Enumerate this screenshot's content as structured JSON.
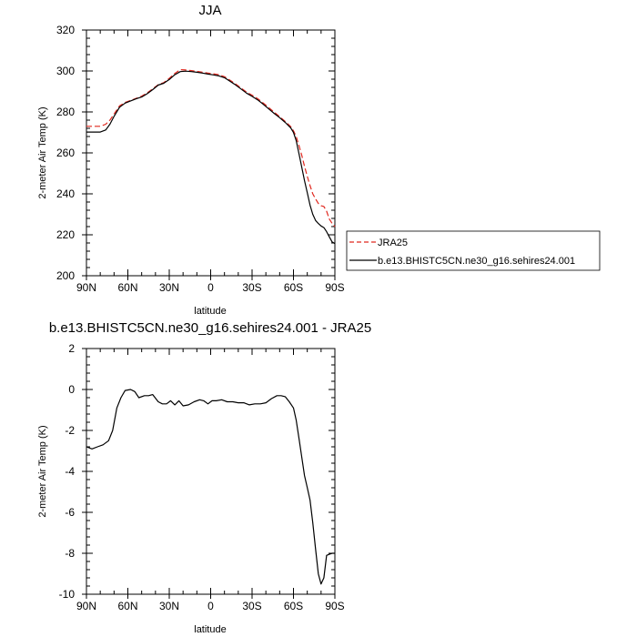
{
  "chart_data": [
    {
      "type": "line",
      "title": "JJA",
      "xlabel": "latitude",
      "ylabel": "2-meter Air Temp (K)",
      "xlim": [
        90,
        -90
      ],
      "ylim": [
        200,
        320
      ],
      "xticks": [
        {
          "value": 90,
          "label": "90N"
        },
        {
          "value": 60,
          "label": "60N"
        },
        {
          "value": 30,
          "label": "30N"
        },
        {
          "value": 0,
          "label": "0"
        },
        {
          "value": -30,
          "label": "30S"
        },
        {
          "value": -60,
          "label": "60S"
        },
        {
          "value": -90,
          "label": "90S"
        }
      ],
      "yticks": [
        200,
        220,
        240,
        260,
        280,
        300,
        320
      ],
      "legend_position": "right",
      "series": [
        {
          "name": "JRA25",
          "color": "#e0281f",
          "dash": "dashed",
          "x": [
            90,
            85,
            80,
            76,
            73,
            70,
            66,
            62,
            58,
            54,
            50,
            46,
            42,
            38,
            34,
            30,
            26,
            22,
            18,
            14,
            10,
            6,
            2,
            -2,
            -6,
            -10,
            -14,
            -18,
            -22,
            -26,
            -30,
            -34,
            -38,
            -42,
            -46,
            -50,
            -54,
            -58,
            -60,
            -62,
            -64,
            -66,
            -68,
            -70,
            -72,
            -74,
            -76,
            -78,
            -80,
            -82,
            -84,
            -86,
            -88,
            -90
          ],
          "y": [
            273,
            273,
            273,
            274,
            276,
            279,
            283,
            284.6,
            285.6,
            286.6,
            287.7,
            289.3,
            291.3,
            293.3,
            294.3,
            296.4,
            298.8,
            300.6,
            300.5,
            300.2,
            299.8,
            299.4,
            299.0,
            298.6,
            298.2,
            297.2,
            295.5,
            293.7,
            291.7,
            289.7,
            288.2,
            286.5,
            284.4,
            282.2,
            279.9,
            277.7,
            275.4,
            272.8,
            270.8,
            268,
            263.5,
            258.8,
            253.5,
            248.5,
            244,
            240,
            237.5,
            235.3,
            234.2,
            233.8,
            231.5,
            227.7,
            225.5,
            224
          ]
        },
        {
          "name": "b.e13.BHISTC5CN.ne30_g16.sehires24.001",
          "color": "#000000",
          "dash": "solid",
          "x": [
            90,
            85,
            80,
            76,
            73,
            70,
            66,
            62,
            58,
            54,
            50,
            46,
            42,
            38,
            34,
            30,
            26,
            22,
            18,
            14,
            10,
            6,
            2,
            -2,
            -6,
            -10,
            -14,
            -18,
            -22,
            -26,
            -30,
            -34,
            -38,
            -42,
            -46,
            -50,
            -54,
            -58,
            -60,
            -62,
            -64,
            -66,
            -68,
            -70,
            -72,
            -74,
            -76,
            -78,
            -80,
            -82,
            -84,
            -86,
            -88,
            -90
          ],
          "y": [
            270.2,
            270.2,
            270.2,
            271.2,
            274,
            277.8,
            282.3,
            284.3,
            285.4,
            286.4,
            287.3,
            288.9,
            290.9,
            293.1,
            294.0,
            295.8,
            298.2,
            299.7,
            299.9,
            299.7,
            299.4,
            299.0,
            298.5,
            298.1,
            297.6,
            296.7,
            295.0,
            293.2,
            291.2,
            289.2,
            287.6,
            285.9,
            283.8,
            281.5,
            279.3,
            277.2,
            274.9,
            272.2,
            270,
            266,
            259.5,
            253.0,
            246.5,
            240.5,
            234.5,
            230,
            227,
            225.5,
            224.3,
            223.5,
            221.5,
            219,
            216.5,
            215.7
          ]
        }
      ]
    },
    {
      "type": "line",
      "title": "b.e13.BHISTC5CN.ne30_g16.sehires24.001 - JRA25",
      "xlabel": "latitude",
      "ylabel": "2-meter Air Temp (K)",
      "xlim": [
        90,
        -90
      ],
      "ylim": [
        -10,
        2
      ],
      "xticks": [
        {
          "value": 90,
          "label": "90N"
        },
        {
          "value": 60,
          "label": "60N"
        },
        {
          "value": 30,
          "label": "30N"
        },
        {
          "value": 0,
          "label": "0"
        },
        {
          "value": -30,
          "label": "30S"
        },
        {
          "value": -60,
          "label": "60S"
        },
        {
          "value": -90,
          "label": "90S"
        }
      ],
      "yticks": [
        -10,
        -8,
        -6,
        -4,
        -2,
        0,
        2
      ],
      "series": [
        {
          "color": "#000000",
          "dash": "solid",
          "x": [
            90,
            86,
            82,
            78,
            74,
            71,
            68,
            65,
            62,
            58,
            55,
            52,
            48,
            45,
            42,
            38,
            35,
            32,
            29,
            26,
            23,
            20,
            16,
            12,
            8,
            5,
            2,
            -1,
            -4,
            -8,
            -12,
            -16,
            -20,
            -24,
            -28,
            -32,
            -36,
            -40,
            -44,
            -48,
            -51,
            -54,
            -57,
            -60,
            -62,
            -64,
            -66,
            -68,
            -70,
            -72,
            -74,
            -76,
            -78,
            -80,
            -82,
            -84,
            -86,
            -88,
            -90
          ],
          "y": [
            -2.8,
            -2.9,
            -2.8,
            -2.7,
            -2.5,
            -2.0,
            -0.9,
            -0.4,
            -0.05,
            0.0,
            -0.1,
            -0.4,
            -0.3,
            -0.3,
            -0.25,
            -0.6,
            -0.7,
            -0.7,
            -0.55,
            -0.75,
            -0.55,
            -0.8,
            -0.75,
            -0.6,
            -0.5,
            -0.55,
            -0.7,
            -0.55,
            -0.55,
            -0.5,
            -0.6,
            -0.6,
            -0.65,
            -0.65,
            -0.75,
            -0.7,
            -0.7,
            -0.65,
            -0.45,
            -0.3,
            -0.3,
            -0.35,
            -0.6,
            -0.9,
            -1.5,
            -2.4,
            -3.3,
            -4.2,
            -4.8,
            -5.4,
            -6.5,
            -7.8,
            -9.0,
            -9.5,
            -9.2,
            -8.1,
            -8.05,
            -8.0,
            -8.0
          ]
        }
      ]
    }
  ]
}
